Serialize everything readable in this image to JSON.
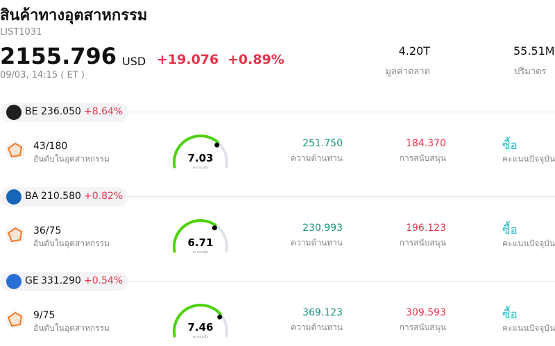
{
  "header": {
    "title": "สินค้าทางอุตสาหกรรม",
    "code": "LIST1031",
    "price": "2155.796",
    "currency": "USD",
    "change": "+19.076",
    "change_percent": "+0.89%",
    "time": "09/03, 14:15 ( ET )",
    "market_cap": {
      "value": "4.20T",
      "label": "มูลค่าตลาด"
    },
    "volume": {
      "value": "55.51M",
      "label": "ปริมาตร"
    }
  },
  "score_range": [
    0,
    10
  ],
  "stocks": [
    {
      "ticker": "BE",
      "price": "236.050",
      "change_percent": "+8.64%",
      "logo_color": "#1f1f1f",
      "rank": "43/180",
      "rank_label": "อันดับในอุตสาหกรรม",
      "score": "7.03",
      "score_label": "คะแนนหุ้น",
      "resistance": "251.750",
      "resistance_label": "ความต้านทาน",
      "support": "184.370",
      "support_label": "การสนับสนุน",
      "rating": "ซื้อ",
      "rating_label": "คะแนนปัจจุบัน"
    },
    {
      "ticker": "BA",
      "price": "210.580",
      "change_percent": "+0.82%",
      "logo_color": "#1565b8",
      "rank": "36/75",
      "rank_label": "อันดับในอุตสาหกรรม",
      "score": "6.71",
      "score_label": "คะแนนหุ้น",
      "resistance": "230.993",
      "resistance_label": "ความต้านทาน",
      "support": "196.123",
      "support_label": "การสนับสนุน",
      "rating": "ซื้อ",
      "rating_label": "คะแนนปัจจุบัน"
    },
    {
      "ticker": "GE",
      "price": "331.290",
      "change_percent": "+0.54%",
      "logo_color": "#2a6fd6",
      "rank": "9/75",
      "rank_label": "อันดับในอุตสาหกรรม",
      "score": "7.46",
      "score_label": "คะแนนหุ้น",
      "resistance": "369.123",
      "resistance_label": "ความต้านทาน",
      "support": "309.593",
      "support_label": "การสนับสนุน",
      "rating": "ซื้อ",
      "rating_label": "คะแนนปัจจุบัน"
    }
  ]
}
